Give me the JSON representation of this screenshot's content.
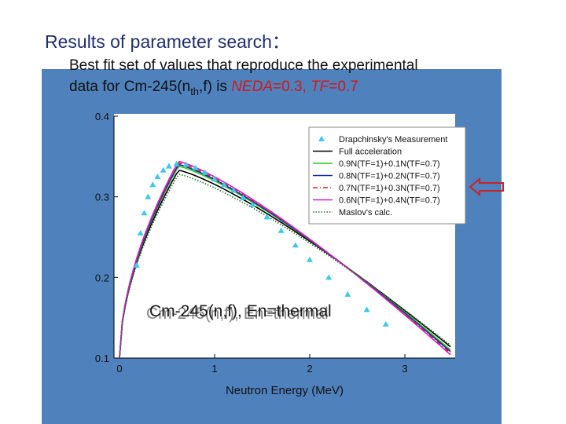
{
  "slide": {
    "title": "Results of parameter search：",
    "caption_line1": "Best fit set of values that reproduce the experimental",
    "caption_line2_a": "data for Cm-245(n",
    "caption_line2_sub": "th",
    "caption_line2_b": ",f) is ",
    "caption_neda": "NEDA",
    "caption_neda_val": "=0.3, ",
    "caption_tf": "TF",
    "caption_tf_val": "=0.7"
  },
  "colors": {
    "panel": "#4f81bd",
    "measurement": "#3fc8e8",
    "full": "#000000",
    "green": "#22cc22",
    "navy": "#1a2a9a",
    "red": "#dd2222",
    "magenta": "#cc22cc",
    "maslov": "#2a6b2a",
    "arrow": "#cc2222"
  },
  "icons": {
    "arrow": "left-arrow-icon"
  },
  "chart_data": {
    "type": "line",
    "annotation": "Cm-245(n,f), En=thermal",
    "annotation_shadow": "Cm-245(n,f), En=thermal",
    "xlabel": "Neutron Energy (MeV)",
    "ylabel": "",
    "xlim": [
      -0.05,
      3.5
    ],
    "ylim": [
      0.1,
      0.4
    ],
    "xticks": [
      0,
      1,
      2,
      3
    ],
    "yticks": [
      0.1,
      0.2,
      0.3,
      0.4
    ],
    "ytick_labels": [
      "0.1",
      "0.2",
      "0.3",
      "0.4"
    ],
    "xtick_labels": [
      "0",
      "1",
      "2",
      "3"
    ],
    "legend_position": "top-right",
    "measurement": {
      "name": "Drapchinsky's Measurement",
      "x": [
        0.18,
        0.22,
        0.26,
        0.3,
        0.35,
        0.4,
        0.46,
        0.52,
        0.6,
        0.7,
        0.8,
        0.9,
        1.0,
        1.1,
        1.2,
        1.3,
        1.4,
        1.55,
        1.7,
        1.85,
        2.0,
        2.2,
        2.4,
        2.6,
        2.8
      ],
      "y": [
        0.215,
        0.255,
        0.28,
        0.3,
        0.315,
        0.325,
        0.333,
        0.338,
        0.341,
        0.34,
        0.336,
        0.33,
        0.322,
        0.315,
        0.308,
        0.299,
        0.29,
        0.275,
        0.258,
        0.24,
        0.222,
        0.2,
        0.179,
        0.16,
        0.142
      ]
    },
    "series": [
      {
        "name": "Full acceleration",
        "style": "solid",
        "color": "#000000",
        "peak": 0.333,
        "tail": 0.112
      },
      {
        "name": "0.9N(TF=1)+0.1N(TF=0.7)",
        "style": "solid",
        "color": "#22cc22",
        "peak": 0.338,
        "tail": 0.108
      },
      {
        "name": "0.8N(TF=1)+0.2N(TF=0.7)",
        "style": "solid",
        "color": "#1a2a9a",
        "peak": 0.34,
        "tail": 0.106
      },
      {
        "name": "0.7N(TF=1)+0.3N(TF=0.7)",
        "style": "dashdot",
        "color": "#dd2222",
        "peak": 0.342,
        "tail": 0.104
      },
      {
        "name": "0.6N(TF=1)+0.4N(TF=0.7)",
        "style": "solid",
        "color": "#cc22cc",
        "peak": 0.344,
        "tail": 0.102
      },
      {
        "name": "Maslov's calc.",
        "style": "dotted",
        "color": "#2a6b2a",
        "peak": 0.328,
        "tail": 0.114
      }
    ]
  }
}
